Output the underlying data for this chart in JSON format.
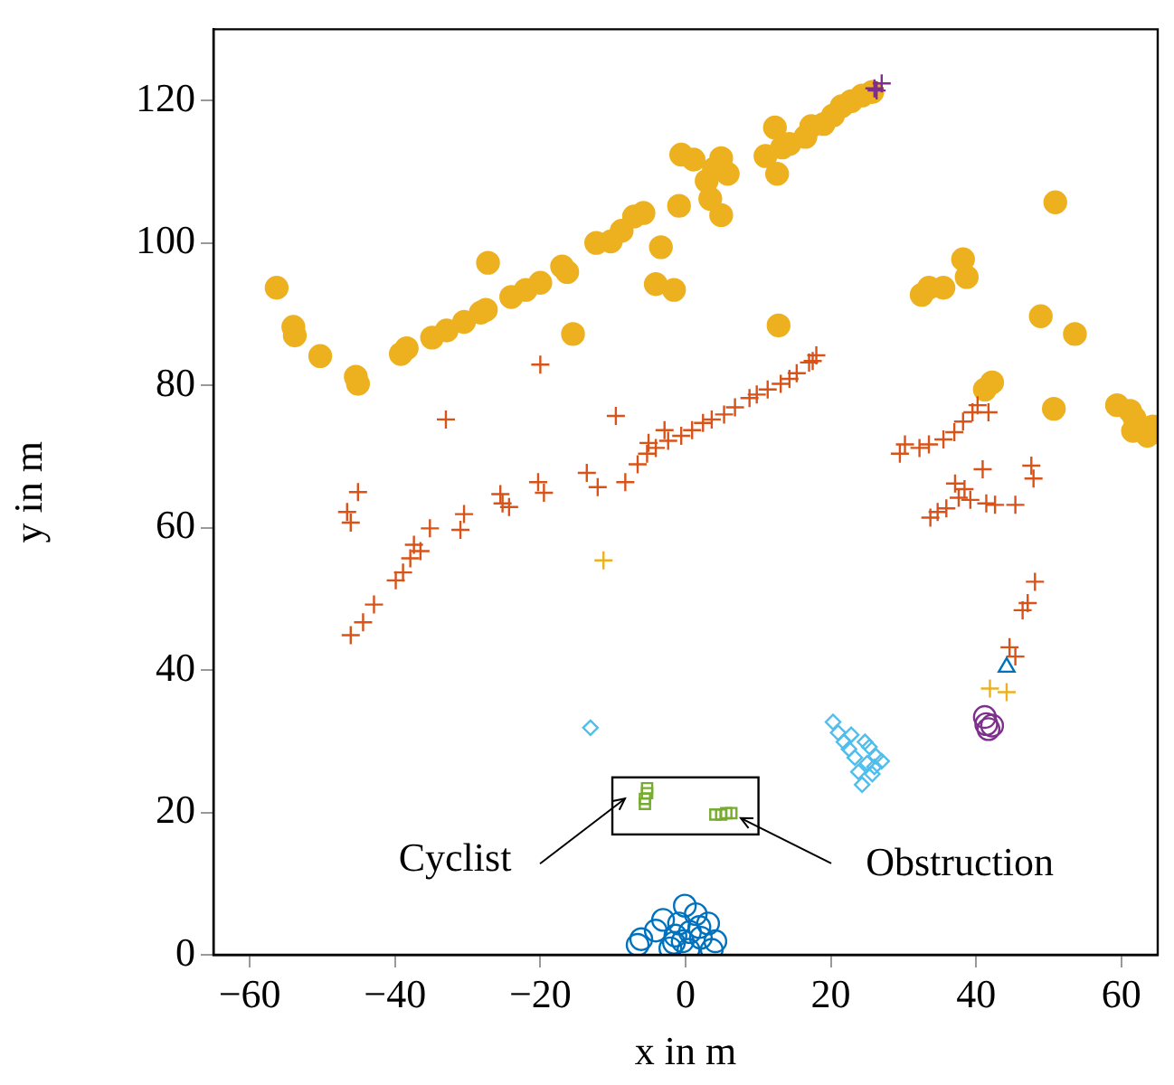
{
  "chart_data": {
    "type": "scatter",
    "xlabel": "x in m",
    "ylabel": "y in m",
    "xlim": [
      -65,
      65
    ],
    "ylim": [
      0,
      130
    ],
    "xticks": [
      -60,
      -40,
      -20,
      0,
      20,
      40,
      60
    ],
    "yticks": [
      0,
      20,
      40,
      60,
      80,
      100,
      120
    ],
    "grid": false,
    "legend": false,
    "annotations": [
      "Cyclist",
      {
        "text": "Obstruction",
        "x": 7.6,
        "y": 19.2
      }
    ],
    "series": [
      {
        "color": "#edb120",
        "marker": "circle",
        "x": [
          -56.3,
          -54,
          -53.8,
          -50.3,
          -45.4,
          -45.1,
          -39.2,
          -38.4,
          -34.9,
          -32.9,
          -30.5,
          -28.2,
          -27.5,
          -27.2,
          -24,
          -22,
          -20,
          -17,
          -16.3,
          -15.5,
          -12.3,
          -10.3,
          -8.8,
          -7.1,
          -5.8,
          -4.1,
          -3.4,
          -1.6,
          -0.9,
          -0.6,
          1.1,
          2.9,
          3.9,
          4.9,
          4.9,
          5.8,
          3.4,
          11,
          12.6,
          12.3,
          12.8,
          13.3,
          14.3,
          16.5,
          17.3,
          19,
          20.3,
          21.5,
          22.8,
          24.3,
          25.7,
          32.5,
          33.5,
          35.5,
          38.2,
          38.7,
          42.2,
          41.2,
          50.9,
          48.9,
          53.6,
          50.7,
          59.4,
          61.2,
          61.6,
          63.6,
          64.3,
          61.8
        ],
        "values": [
          93.7,
          88.2,
          87,
          84.1,
          81.2,
          80.2,
          84.4,
          85.2,
          86.7,
          87.7,
          88.9,
          90.2,
          90.6,
          97.2,
          92.4,
          93.4,
          94.4,
          96.7,
          95.9,
          87.2,
          100,
          100.2,
          101.7,
          103.7,
          104.2,
          94.2,
          99.4,
          93.4,
          105.2,
          112.4,
          111.7,
          108.7,
          110.4,
          103.9,
          111.9,
          109.7,
          106.2,
          112.2,
          109.7,
          116.2,
          88.4,
          113.4,
          113.9,
          114.9,
          116.4,
          116.7,
          117.9,
          119.2,
          119.9,
          120.7,
          121.2,
          92.7,
          93.7,
          93.7,
          97.7,
          95.2,
          80.4,
          79.4,
          105.7,
          89.7,
          87.2,
          76.7,
          77.2,
          76.4,
          73.6,
          72.9,
          74.2,
          75.4
        ]
      },
      {
        "color": "#d95319",
        "marker": "cross",
        "x": [
          -46.1,
          -44.4,
          -42.9,
          -39.9,
          -38.9,
          -37.9,
          -36.5,
          -35.2,
          -37.4,
          -31,
          -30.5,
          -25.5,
          -25.2,
          -24.3,
          -20.3,
          -19.5,
          -20,
          -46.6,
          -46.1,
          -45.1,
          -33,
          -9.6,
          -13.6,
          -12.1,
          -8.3,
          -6.6,
          -5.3,
          -4.1,
          -2.4,
          -0.6,
          0.9,
          2.4,
          3.6,
          5.3,
          6.8,
          8.8,
          9.8,
          11.3,
          13.1,
          14.3,
          15.3,
          17,
          18,
          17.5,
          -5.1,
          -2.9,
          29.5,
          30.2,
          32.2,
          33.5,
          35.5,
          37,
          38.2,
          39.5,
          40.2,
          41.7,
          33.7,
          34.7,
          35.9,
          37.6,
          37.1,
          38.4,
          39.2,
          40.9,
          41.4,
          42.6,
          45.4,
          47.6,
          47.9,
          48.1,
          46.4,
          47.1,
          44.6,
          45.4
        ],
        "values": [
          44.9,
          46.7,
          49.2,
          52.6,
          53.7,
          55.7,
          56.7,
          59.9,
          57.6,
          59.7,
          61.9,
          64.7,
          63.4,
          62.9,
          66.4,
          64.9,
          82.9,
          62.2,
          60.7,
          65,
          75.2,
          75.7,
          67.7,
          65.7,
          66.4,
          68.9,
          70.4,
          71.2,
          72.2,
          72.9,
          73.7,
          74.7,
          75.2,
          75.9,
          76.9,
          78.2,
          78.7,
          79.4,
          80.2,
          80.9,
          81.7,
          83.2,
          84.2,
          83.4,
          71.9,
          73.7,
          70.4,
          71.7,
          71.2,
          71.7,
          72.4,
          73.4,
          74.9,
          76.2,
          77.2,
          76.2,
          61.4,
          62.2,
          62.7,
          64.2,
          66.2,
          65.4,
          63.9,
          68.2,
          63.4,
          63.2,
          63.2,
          68.7,
          66.9,
          52.4,
          48.4,
          49.4,
          43.2,
          41.9
        ]
      },
      {
        "color": "#0072bd",
        "marker": "circle",
        "x": [
          -6.6,
          -6.1,
          -4.1,
          -3.1,
          -1.6,
          -0.9,
          -0.1,
          0.6,
          1.4,
          2.1,
          3.1,
          3.6,
          0.4,
          -1.4,
          -0.4,
          1.9,
          4.1,
          -2.1
        ],
        "values": [
          1.4,
          2.2,
          3.4,
          4.9,
          1.7,
          4.4,
          6.9,
          3.2,
          5.7,
          2.4,
          4.4,
          0.7,
          0.7,
          2.7,
          1.9,
          3.9,
          1.9,
          0.9
        ]
      },
      {
        "color": "#4dbeee",
        "marker": "diamond",
        "x": [
          -13.1,
          20.3,
          21,
          21.8,
          22.5,
          23.3,
          23.8,
          24.3,
          25,
          26.2,
          27,
          26,
          25.3,
          22.8,
          24.7,
          25.7
        ],
        "values": [
          31.9,
          32.7,
          31.2,
          29.9,
          28.9,
          27.7,
          25.7,
          23.9,
          26.9,
          27.9,
          27.2,
          26.4,
          29.2,
          30.9,
          29.9,
          25.4
        ]
      },
      {
        "color": "#77ac30",
        "marker": "square",
        "x": [
          -5.3,
          -5.6,
          -5.3,
          -5.6,
          4.1,
          4.9,
          5.6,
          6.3
        ],
        "values": [
          22.7,
          21.9,
          23.4,
          21.2,
          19.7,
          19.7,
          19.9,
          19.9
        ]
      },
      {
        "color": "#7e2f8e",
        "marker": "circle",
        "x": [
          41.2,
          41.4,
          41.7,
          42.2
        ],
        "values": [
          33.4,
          32.4,
          31.7,
          32.2
        ]
      },
      {
        "color": "#edb120",
        "marker": "cross",
        "x": [
          -11.3,
          41.9,
          44.2
        ],
        "values": [
          55.4,
          37.4,
          36.9
        ]
      },
      {
        "color": "#0072bd",
        "marker": "triangle",
        "x": [
          44.2
        ],
        "values": [
          40.4
        ]
      },
      {
        "color": "#7e2f8e",
        "marker": "cross",
        "x": [
          26,
          27,
          26.3
        ],
        "values": [
          121.7,
          122.4,
          121.4
        ]
      }
    ]
  }
}
